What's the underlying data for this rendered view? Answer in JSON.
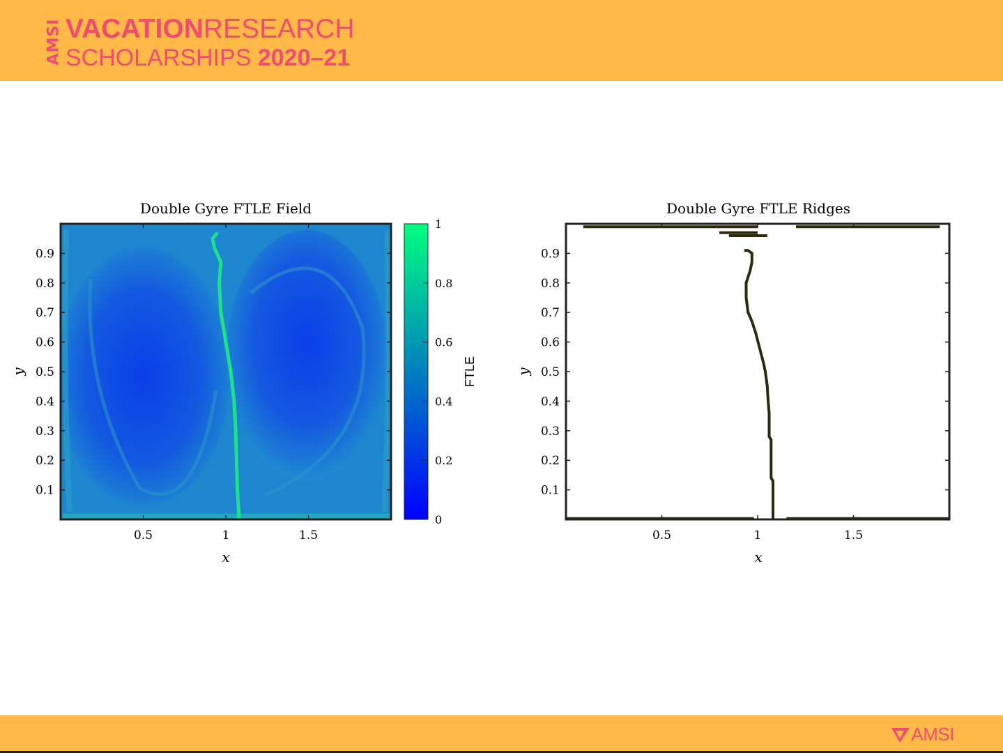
{
  "header": {
    "logo_vertical": "AMSI",
    "logo_line1_bold": "VACATION",
    "logo_line1_rest": "RESEARCH",
    "logo_line2_rest": "SCHOLARSHIPS ",
    "logo_line2_bold": "2020–21"
  },
  "footer": {
    "logo_text": "AMSI"
  },
  "colors": {
    "banner": "#ffb949",
    "logo_pink": "#ee4d6f",
    "ridge": "#2c2a0c",
    "colormap_low": "#0022ff",
    "colormap_high": "#00f47a"
  },
  "chart_data": [
    {
      "type": "heatmap",
      "title": "Double Gyre FTLE Field",
      "xlabel": "x",
      "ylabel": "y",
      "xlim": [
        0,
        2
      ],
      "ylim": [
        0,
        1
      ],
      "xticks": [
        "0.5",
        "1",
        "1.5"
      ],
      "yticks": [
        "0.1",
        "0.2",
        "0.3",
        "0.4",
        "0.5",
        "0.6",
        "0.7",
        "0.8",
        "0.9"
      ],
      "colorbar": {
        "label": "FTLE",
        "range": [
          0,
          1
        ],
        "ticks": [
          "0",
          "0.2",
          "0.4",
          "0.6",
          "0.8",
          "1"
        ],
        "colormap": "winter"
      },
      "ridge_curve": [
        [
          1.08,
          0.0
        ],
        [
          1.07,
          0.1
        ],
        [
          1.065,
          0.2
        ],
        [
          1.06,
          0.3
        ],
        [
          1.05,
          0.4
        ],
        [
          1.03,
          0.5
        ],
        [
          1.0,
          0.6
        ],
        [
          0.97,
          0.7
        ],
        [
          0.96,
          0.8
        ],
        [
          0.97,
          0.87
        ],
        [
          0.93,
          0.92
        ],
        [
          0.92,
          0.95
        ],
        [
          0.95,
          0.97
        ]
      ],
      "description_values": {
        "background_ftle": 0.25,
        "ridge_ftle": 0.95
      }
    },
    {
      "type": "line",
      "title": "Double Gyre FTLE Ridges",
      "xlabel": "x",
      "ylabel": "y",
      "xlim": [
        0,
        2
      ],
      "ylim": [
        0,
        1
      ],
      "xticks": [
        "0.5",
        "1",
        "1.5"
      ],
      "yticks": [
        "0.1",
        "0.2",
        "0.3",
        "0.4",
        "0.5",
        "0.6",
        "0.7",
        "0.8",
        "0.9"
      ],
      "series": [
        {
          "x": [
            1.08,
            1.08,
            1.07,
            1.07,
            1.06,
            1.06,
            1.055,
            1.05,
            1.04,
            1.03,
            1.01,
            0.99,
            0.97,
            0.95,
            0.94,
            0.94,
            0.95,
            0.96,
            0.97,
            0.97,
            0.95,
            0.93
          ],
          "y": [
            0.0,
            0.13,
            0.14,
            0.27,
            0.28,
            0.36,
            0.4,
            0.45,
            0.5,
            0.53,
            0.58,
            0.63,
            0.67,
            0.7,
            0.75,
            0.8,
            0.82,
            0.84,
            0.87,
            0.9,
            0.91,
            0.91
          ]
        }
      ],
      "boundary_segments": [
        {
          "x": [
            0.0,
            0.98
          ],
          "y": [
            0.003,
            0.003
          ]
        },
        {
          "x": [
            1.15,
            2.0
          ],
          "y": [
            0.003,
            0.003
          ]
        },
        {
          "x": [
            0.09,
            1.0
          ],
          "y": [
            0.99,
            0.99
          ]
        },
        {
          "x": [
            1.2,
            1.95
          ],
          "y": [
            0.99,
            0.99
          ]
        },
        {
          "x": [
            0.8,
            1.0
          ],
          "y": [
            0.97,
            0.97
          ]
        },
        {
          "x": [
            0.85,
            1.05
          ],
          "y": [
            0.96,
            0.96
          ]
        }
      ]
    }
  ]
}
